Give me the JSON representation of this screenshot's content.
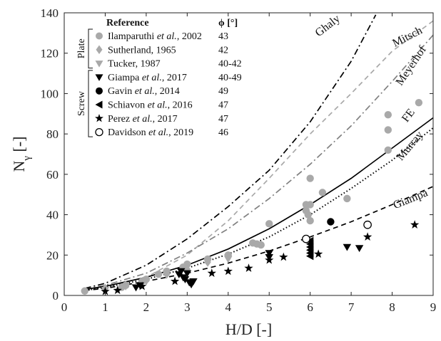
{
  "chart_data": {
    "type": "scatter",
    "xlabel": "H/D [-]",
    "ylabel_main": "N",
    "ylabel_sub": "γ",
    "ylabel_unit": " [-]",
    "xlim": [
      0,
      9
    ],
    "ylim": [
      0,
      140
    ],
    "xticks": [
      "0",
      "1",
      "2",
      "3",
      "4",
      "5",
      "6",
      "7",
      "8",
      "9"
    ],
    "yticks": [
      "0",
      "20",
      "40",
      "60",
      "80",
      "100",
      "120",
      "140"
    ],
    "grid": false,
    "legend": {
      "placement": "top-left",
      "header_reference": "Reference",
      "header_phi": "ϕ [°]",
      "groups": [
        {
          "label": "Plate",
          "rows": [
            0,
            1,
            2
          ]
        },
        {
          "label": "Screw",
          "rows": [
            3,
            4,
            5,
            6,
            7
          ]
        }
      ]
    },
    "series": [
      {
        "name": "Ilamparuthi et al., 2002",
        "author": "Ilamparuthi",
        "etal": " et al.",
        "year": ", 2002",
        "phi": "43",
        "marker": "circle",
        "color": "#a9a9a9",
        "points": [
          [
            0.5,
            2.2
          ],
          [
            1.4,
            4.0
          ],
          [
            1.5,
            5.0
          ],
          [
            1.9,
            7.0
          ],
          [
            2.0,
            8.0
          ],
          [
            2.3,
            10.5
          ],
          [
            2.5,
            12.0
          ],
          [
            2.9,
            14.0
          ],
          [
            3.0,
            15.5
          ],
          [
            3.5,
            18.0
          ],
          [
            4.0,
            20.0
          ],
          [
            4.6,
            26.0
          ],
          [
            4.7,
            25.5
          ],
          [
            4.8,
            25.0
          ],
          [
            5.0,
            35.5
          ],
          [
            5.9,
            45.0
          ],
          [
            5.9,
            42.0
          ],
          [
            5.95,
            40.0
          ],
          [
            6.0,
            58.0
          ],
          [
            6.0,
            45.0
          ],
          [
            6.0,
            37.0
          ],
          [
            6.3,
            51.0
          ],
          [
            6.9,
            48.0
          ],
          [
            7.9,
            89.5
          ],
          [
            7.9,
            82.0
          ],
          [
            7.9,
            72.0
          ],
          [
            8.65,
            95.5
          ]
        ]
      },
      {
        "name": "Sutherland, 1965",
        "author": "Sutherland",
        "etal": "",
        "year": ", 1965",
        "phi": "42",
        "marker": "diamond",
        "color": "#a9a9a9",
        "points": [
          [
            1.0,
            3.5
          ],
          [
            1.5,
            5.0
          ],
          [
            2.0,
            7.5
          ],
          [
            2.5,
            10.5
          ],
          [
            3.0,
            13.0
          ],
          [
            3.5,
            16.5
          ]
        ]
      },
      {
        "name": "Tucker, 1987",
        "author": "Tucker",
        "etal": "",
        "year": ", 1987",
        "phi": "40-42",
        "marker": "triangle-down",
        "color": "#a9a9a9",
        "points": [
          [
            1.0,
            2.8
          ],
          [
            1.5,
            4.5
          ],
          [
            2.0,
            7.0
          ],
          [
            3.0,
            11.0
          ],
          [
            4.0,
            18.0
          ]
        ]
      },
      {
        "name": "Giampa et al., 2017",
        "author": "Giampa",
        "etal": " et al.",
        "year": ", 2017",
        "phi": "40-49",
        "marker": "triangle-down",
        "color": "#000000",
        "points": [
          [
            1.75,
            4.0
          ],
          [
            1.85,
            5.0
          ],
          [
            2.8,
            10.5
          ],
          [
            2.85,
            12.0
          ],
          [
            2.9,
            9.0
          ],
          [
            2.95,
            8.0
          ],
          [
            3.0,
            11.0
          ],
          [
            3.05,
            6.5
          ],
          [
            3.1,
            5.5
          ],
          [
            3.15,
            7.0
          ],
          [
            5.0,
            21.0
          ],
          [
            5.0,
            19.0
          ],
          [
            6.9,
            24.0
          ],
          [
            7.2,
            23.5
          ]
        ]
      },
      {
        "name": "Gavin et al., 2014",
        "author": "Gavin",
        "etal": " et al.",
        "year": ", 2014",
        "phi": "49",
        "marker": "circle",
        "color": "#000000",
        "points": [
          [
            6.5,
            36.5
          ]
        ]
      },
      {
        "name": "Schiavon et al., 2016",
        "author": "Schiavon",
        "etal": " et al.",
        "year": ", 2016",
        "phi": "47",
        "marker": "triangle-left",
        "color": "#000000",
        "points": [
          [
            6.0,
            19.5
          ],
          [
            6.0,
            21.0
          ],
          [
            6.0,
            22.5
          ],
          [
            6.0,
            24.0
          ],
          [
            6.0,
            25.5
          ],
          [
            6.0,
            27.0
          ]
        ]
      },
      {
        "name": "Perez et al., 2017",
        "author": "Perez",
        "etal": " et al.",
        "year": ", 2017",
        "phi": "47",
        "marker": "star",
        "color": "#000000",
        "points": [
          [
            1.0,
            2.0
          ],
          [
            1.3,
            2.5
          ],
          [
            1.9,
            4.5
          ],
          [
            2.7,
            7.0
          ],
          [
            3.6,
            11.0
          ],
          [
            4.0,
            12.0
          ],
          [
            4.5,
            13.5
          ],
          [
            5.0,
            17.5
          ],
          [
            5.35,
            19.0
          ],
          [
            6.2,
            20.5
          ],
          [
            7.4,
            29.0
          ],
          [
            8.55,
            35.0
          ]
        ]
      },
      {
        "name": "Davidson et al., 2019",
        "author": "Davidson",
        "etal": " et al.",
        "year": ", 2019",
        "phi": "46",
        "marker": "circle-open",
        "color": "#000000",
        "points": [
          [
            5.9,
            28.0
          ],
          [
            7.4,
            35.0
          ]
        ]
      }
    ],
    "curves": [
      {
        "name": "Ghaly",
        "style": "dashdot",
        "color": "#000000",
        "points": [
          [
            0.5,
            3.5
          ],
          [
            1,
            6
          ],
          [
            2,
            15
          ],
          [
            3,
            28
          ],
          [
            4,
            44
          ],
          [
            5,
            62
          ],
          [
            6,
            86
          ],
          [
            7,
            116
          ],
          [
            7.6,
            139
          ]
        ]
      },
      {
        "name": "Mitsch",
        "style": "dashed",
        "color": "#a9a9a9",
        "points": [
          [
            0.5,
            3
          ],
          [
            1,
            4
          ],
          [
            2,
            9
          ],
          [
            3,
            20
          ],
          [
            4,
            37
          ],
          [
            5,
            58
          ],
          [
            6,
            80
          ],
          [
            7,
            100
          ],
          [
            8,
            121
          ],
          [
            9,
            136
          ]
        ]
      },
      {
        "name": "Meyerhof",
        "style": "dashdot",
        "color": "#808080",
        "points": [
          [
            0.5,
            3
          ],
          [
            1,
            5
          ],
          [
            2,
            11
          ],
          [
            3,
            21
          ],
          [
            4,
            33
          ],
          [
            5,
            48
          ],
          [
            6,
            65
          ],
          [
            7,
            84
          ],
          [
            8,
            106
          ],
          [
            9,
            129
          ]
        ]
      },
      {
        "name": "FE",
        "style": "solid",
        "color": "#000000",
        "points": [
          [
            0.5,
            3
          ],
          [
            1,
            4.5
          ],
          [
            2,
            9
          ],
          [
            3,
            15
          ],
          [
            4,
            23
          ],
          [
            5,
            33
          ],
          [
            6,
            45
          ],
          [
            7,
            58
          ],
          [
            8,
            73
          ],
          [
            9,
            88
          ]
        ]
      },
      {
        "name": "Murray",
        "style": "dotted",
        "color": "#000000",
        "points": [
          [
            0.5,
            2.5
          ],
          [
            1,
            4
          ],
          [
            2,
            8
          ],
          [
            3,
            13.5
          ],
          [
            4,
            20.5
          ],
          [
            5,
            29
          ],
          [
            6,
            40
          ],
          [
            7,
            53
          ],
          [
            8,
            67
          ],
          [
            9,
            83
          ]
        ]
      },
      {
        "name": "Giampa",
        "style": "dashed",
        "color": "#000000",
        "points": [
          [
            0.5,
            2.5
          ],
          [
            1,
            3.5
          ],
          [
            2,
            7
          ],
          [
            3,
            11
          ],
          [
            4,
            16
          ],
          [
            5,
            22
          ],
          [
            6,
            29
          ],
          [
            7,
            36.5
          ],
          [
            8,
            45
          ],
          [
            9,
            54
          ]
        ]
      }
    ]
  }
}
